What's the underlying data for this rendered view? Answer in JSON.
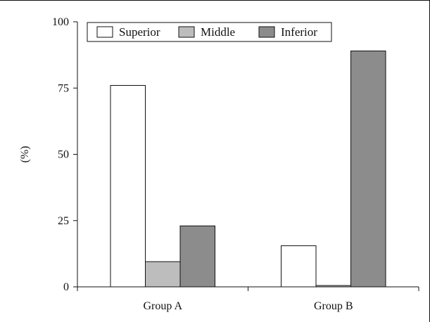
{
  "chart_data": {
    "type": "bar",
    "categories": [
      "Group A",
      "Group B"
    ],
    "series": [
      {
        "name": "Superior",
        "values": [
          76,
          15.5
        ],
        "color": "#ffffff"
      },
      {
        "name": "Middle",
        "values": [
          9.5,
          0.5
        ],
        "color": "#bdbdbd"
      },
      {
        "name": "Inferior",
        "values": [
          23,
          89
        ],
        "color": "#8c8c8c"
      }
    ],
    "ylabel": "(%)",
    "xlabel": "",
    "ylim": [
      0,
      100
    ],
    "yticks": [
      "0",
      "25",
      "50",
      "75",
      "100"
    ],
    "grid": false,
    "legend_position": "top-left inside",
    "bar_edge_color": "#111111"
  }
}
